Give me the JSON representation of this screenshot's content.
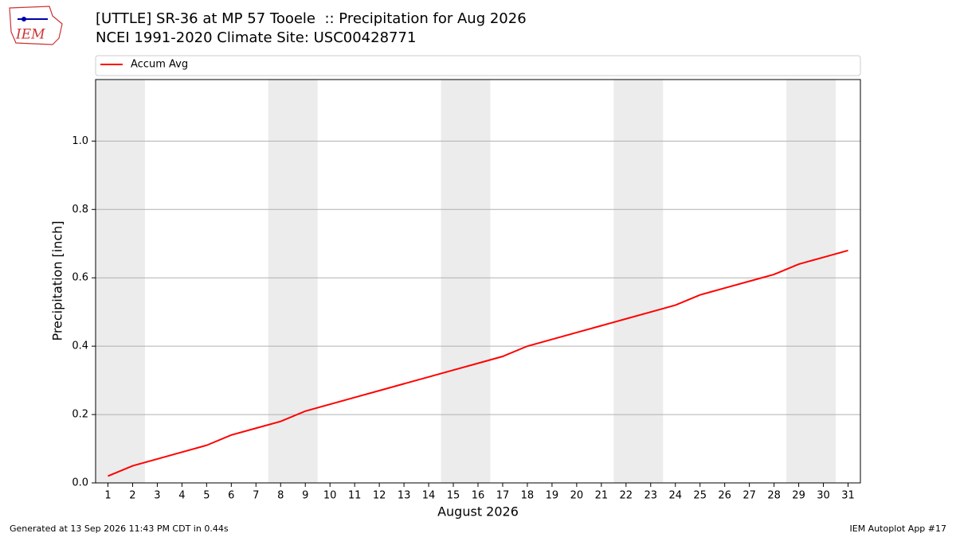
{
  "chart_data": {
    "type": "line",
    "title": "[UTTLE] SR-36 at MP 57 Tooele  :: Precipitation for Aug 2026",
    "subtitle": "NCEI 1991-2020 Climate Site: USC00428771",
    "xlabel": "August 2026",
    "ylabel": "Precipitation [inch]",
    "x": [
      1,
      2,
      3,
      4,
      5,
      6,
      7,
      8,
      9,
      10,
      11,
      12,
      13,
      14,
      15,
      16,
      17,
      18,
      19,
      20,
      21,
      22,
      23,
      24,
      25,
      26,
      27,
      28,
      29,
      30,
      31
    ],
    "series": [
      {
        "name": "Accum Avg",
        "color": "#ff0000",
        "values": [
          0.02,
          0.05,
          0.07,
          0.09,
          0.11,
          0.14,
          0.16,
          0.18,
          0.21,
          0.23,
          0.25,
          0.27,
          0.29,
          0.31,
          0.33,
          0.35,
          0.37,
          0.4,
          0.42,
          0.44,
          0.46,
          0.48,
          0.5,
          0.52,
          0.55,
          0.57,
          0.59,
          0.61,
          0.64,
          0.66,
          0.68
        ]
      }
    ],
    "xlim": [
      0.5,
      31.5
    ],
    "xticks": [
      1,
      2,
      3,
      4,
      5,
      6,
      7,
      8,
      9,
      10,
      11,
      12,
      13,
      14,
      15,
      16,
      17,
      18,
      19,
      20,
      21,
      22,
      23,
      24,
      25,
      26,
      27,
      28,
      29,
      30,
      31
    ],
    "ylim": [
      0,
      1.18
    ],
    "yticks": [
      {
        "value": 0,
        "label": "0.0"
      },
      0.2,
      0.4,
      0.6,
      0.8,
      {
        "value": 1,
        "label": "1.0"
      }
    ],
    "grid": true,
    "weekend_spans": [
      [
        0.5,
        2.5
      ],
      [
        7.5,
        9.5
      ],
      [
        14.5,
        16.5
      ],
      [
        21.5,
        23.5
      ],
      [
        28.5,
        30.5
      ]
    ],
    "weekend_color": "#ececec",
    "legend": "top"
  },
  "logo": {
    "text": "IEM"
  },
  "footer": {
    "left": "Generated at 13 Sep 2026 11:43 PM CDT in 0.44s",
    "right": "IEM Autoplot App #17"
  }
}
